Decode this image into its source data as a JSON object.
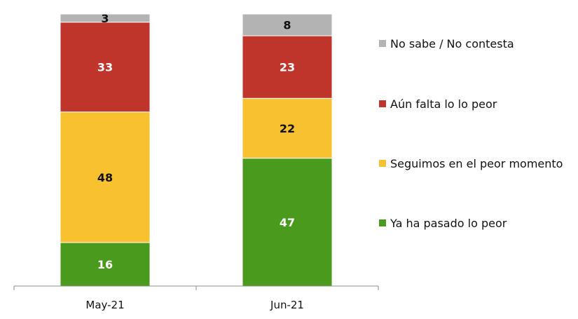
{
  "chart_data": {
    "type": "bar",
    "stacked": true,
    "categories": [
      "May-21",
      "Jun-21"
    ],
    "series": [
      {
        "name": "Ya ha pasado lo peor",
        "values": [
          16,
          47
        ],
        "color": "#4a9a1e",
        "label_color": "#ffffff"
      },
      {
        "name": "Seguimos en el peor momento",
        "values": [
          48,
          22
        ],
        "color": "#f8c12f",
        "label_color": "#111111"
      },
      {
        "name": "Aún falta lo lo peor",
        "values": [
          33,
          23
        ],
        "color": "#c0352b",
        "label_color": "#ffffff"
      },
      {
        "name": "No sabe / No contesta",
        "values": [
          3,
          8
        ],
        "color": "#b3b3b3",
        "label_color": "#111111"
      }
    ],
    "value_labels": [
      [
        "16",
        "47"
      ],
      [
        "48",
        "22"
      ],
      [
        "33",
        "23"
      ],
      [
        "3",
        "8"
      ]
    ],
    "legend_order": [
      3,
      2,
      1,
      0
    ],
    "legend_position": "right",
    "ylim": [
      0,
      100
    ],
    "grid": false,
    "title": "",
    "xlabel": "",
    "ylabel": ""
  }
}
